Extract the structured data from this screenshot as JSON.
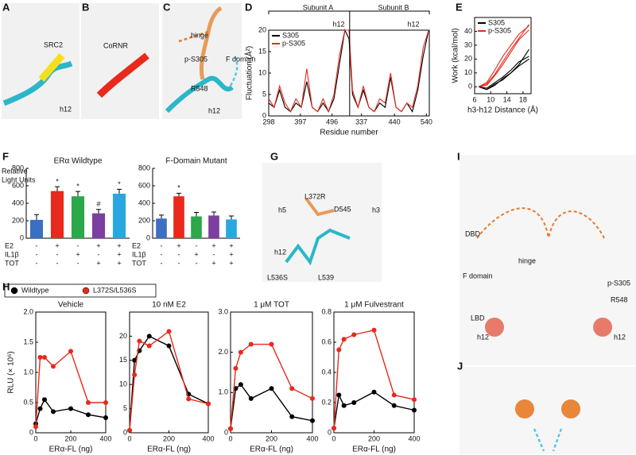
{
  "panels": [
    {
      "letter": "A",
      "labels": [
        "SRC2",
        "h12"
      ]
    },
    {
      "letter": "B",
      "labels": [
        "CoRNR"
      ]
    },
    {
      "letter": "C",
      "labels": [
        "hinge",
        "p-S305",
        "F domain",
        "R548",
        "h12"
      ]
    },
    {
      "letter": "D",
      "labels": []
    },
    {
      "letter": "E",
      "labels": []
    },
    {
      "letter": "F",
      "labels": []
    },
    {
      "letter": "G",
      "labels": [
        "L372R",
        "h5",
        "D545",
        "h3",
        "h12",
        "L536S",
        "L539"
      ]
    },
    {
      "letter": "H",
      "labels": []
    },
    {
      "letter": "I",
      "labels": [
        "DBD",
        "hinge",
        "F domain",
        "p-S305",
        "R548",
        "LBD",
        "h12",
        "h12"
      ]
    },
    {
      "letter": "J",
      "labels": []
    }
  ],
  "chart_data": [
    {
      "type": "line",
      "xlabel": "Residue number",
      "ylabel": "Fluctuation (Å²)",
      "annotations": [
        "Subunit A",
        "Subunit B",
        "h12",
        "h12"
      ],
      "x": [
        298,
        315,
        332,
        349,
        366,
        383,
        400,
        417,
        434,
        451,
        468,
        485,
        502,
        519,
        536,
        549,
        560,
        577,
        594,
        611,
        628,
        645,
        662,
        679,
        696,
        713,
        730,
        747,
        764,
        781,
        798
      ],
      "xlim": [
        298,
        800
      ],
      "xticks": [
        298,
        397,
        496,
        {
          "value": 588,
          "label": "337"
        },
        {
          "value": 691,
          "label": "440"
        },
        {
          "value": 791,
          "label": "540"
        }
      ],
      "ylim": [
        0,
        20
      ],
      "yticks": [
        0,
        5,
        10,
        15,
        20
      ],
      "legend": "top-left",
      "series": [
        {
          "name": "S305",
          "color": "#000000",
          "values": [
            3,
            2,
            6,
            2,
            1,
            3,
            2,
            8,
            2,
            1,
            3,
            1,
            4,
            12,
            20,
            18,
            5,
            2,
            6,
            2,
            1,
            3,
            2,
            9,
            2,
            1,
            3,
            1,
            6,
            14,
            20
          ]
        },
        {
          "name": "p-S305",
          "color": "#e8291c",
          "values": [
            4,
            2,
            7,
            3,
            1,
            4,
            2,
            11,
            2,
            1,
            4,
            1,
            5,
            14,
            20,
            20,
            6,
            2,
            7,
            2,
            1,
            4,
            3,
            10,
            2,
            1,
            3,
            2,
            7,
            16,
            20
          ]
        }
      ]
    },
    {
      "type": "line",
      "xlabel": "h3-h12 Distance (Å)",
      "ylabel": "Work (kcal/mol)",
      "x": [
        7,
        9,
        11,
        13,
        15,
        17,
        19.5
      ],
      "xlim": [
        6,
        20
      ],
      "xticks": [
        6,
        10,
        14,
        18
      ],
      "ylim": [
        -5,
        50
      ],
      "yticks": [
        0,
        10,
        20,
        30,
        40
      ],
      "legend": "top-left",
      "series": [
        {
          "name": "S305",
          "color": "#000000",
          "values": [
            0,
            -2,
            2,
            5,
            10,
            15,
            20
          ]
        },
        {
          "name": "S305",
          "color": "#000000",
          "values": [
            0,
            -1,
            3,
            7,
            12,
            18,
            22
          ]
        },
        {
          "name": "S305",
          "color": "#000000",
          "values": [
            0,
            -2,
            1,
            6,
            10,
            16,
            27
          ]
        },
        {
          "name": "p-S305",
          "color": "#e8291c",
          "values": [
            0,
            2,
            9,
            18,
            27,
            35,
            45
          ]
        },
        {
          "name": "p-S305",
          "color": "#e8291c",
          "values": [
            0,
            3,
            12,
            22,
            30,
            38,
            44
          ]
        },
        {
          "name": "p-S305",
          "color": "#e8291c",
          "values": [
            0,
            1,
            8,
            16,
            25,
            34,
            41
          ]
        }
      ]
    },
    {
      "type": "bar",
      "title": "ERα Wildtype",
      "ylabel": [
        "Relative",
        "Light Units"
      ],
      "values": [
        210,
        540,
        480,
        285,
        510
      ],
      "errors": [
        60,
        50,
        55,
        45,
        50
      ],
      "colors": [
        "#3a6fc1",
        "#e8291c",
        "#2aa84a",
        "#7b3fa0",
        "#29a8e0"
      ],
      "markers": [
        null,
        "*",
        "*",
        "#",
        "*"
      ],
      "ylim": [
        0,
        800
      ],
      "yticks": [
        0,
        200,
        400,
        600,
        800
      ],
      "conditions": [
        {
          "name": "E2",
          "signs": [
            "-",
            "+",
            "-",
            "+",
            "+"
          ]
        },
        {
          "name": "IL1β",
          "signs": [
            "-",
            "-",
            "+",
            "-",
            "+"
          ]
        },
        {
          "name": "TOT",
          "signs": [
            "-",
            "-",
            "-",
            "+",
            "+"
          ]
        }
      ]
    },
    {
      "type": "bar",
      "title": "F-Domain Mutant",
      "values": [
        225,
        480,
        250,
        260,
        215
      ],
      "errors": [
        40,
        35,
        45,
        40,
        40
      ],
      "colors": [
        "#3a6fc1",
        "#e8291c",
        "#2aa84a",
        "#7b3fa0",
        "#29a8e0"
      ],
      "markers": [
        null,
        "*",
        null,
        null,
        null
      ],
      "ylim": [
        0,
        800
      ],
      "yticks": [
        0,
        200,
        400,
        600,
        800
      ],
      "conditions": [
        {
          "name": "E2",
          "signs": [
            "-",
            "+",
            "-",
            "+",
            "+"
          ]
        },
        {
          "name": "IL1β",
          "signs": [
            "-",
            "-",
            "+",
            "-",
            "+"
          ]
        },
        {
          "name": "TOT",
          "signs": [
            "-",
            "-",
            "-",
            "+",
            "+"
          ]
        }
      ]
    },
    {
      "type": "line",
      "title": "Vehicle",
      "xlabel": "ERα-FL (ng)",
      "ylabel": "RLU (× 10⁶)",
      "markers": true,
      "legend": "above",
      "x": [
        0,
        25,
        50,
        100,
        200,
        300,
        400
      ],
      "xlim": [
        0,
        400
      ],
      "xticks": [
        0,
        200,
        400
      ],
      "ylim": [
        0,
        2
      ],
      "yticks": [
        0,
        0.5,
        {
          "value": 1,
          "label": "1.0"
        },
        1.5,
        {
          "value": 2,
          "label": "2.0"
        }
      ],
      "series": [
        {
          "name": "Wildtype",
          "color": "#000000",
          "values": [
            0.15,
            0.4,
            0.55,
            0.35,
            0.4,
            0.3,
            0.25
          ]
        },
        {
          "name": "L372S/L536S",
          "color": "#e8291c",
          "values": [
            0.1,
            1.25,
            1.25,
            1.1,
            1.35,
            0.5,
            0.5
          ]
        }
      ]
    },
    {
      "type": "line",
      "title": "10 nM E2",
      "xlabel": "ERα-FL (ng)",
      "markers": true,
      "x": [
        0,
        25,
        50,
        100,
        200,
        300,
        400
      ],
      "xlim": [
        0,
        400
      ],
      "xticks": [
        0,
        200,
        400
      ],
      "ylim": [
        0,
        25
      ],
      "yticks": [
        0,
        5,
        10,
        15,
        20
      ],
      "series": [
        {
          "name": "Wildtype",
          "color": "#000000",
          "values": [
            0.5,
            15,
            17,
            20,
            18,
            8,
            6
          ]
        },
        {
          "name": "L372S/L536S",
          "color": "#e8291c",
          "values": [
            0.5,
            12,
            19,
            18,
            21,
            7,
            6
          ]
        }
      ]
    },
    {
      "type": "line",
      "title": "1 μM TOT",
      "xlabel": "ERα-FL (ng)",
      "markers": true,
      "x": [
        0,
        25,
        50,
        100,
        200,
        300,
        400
      ],
      "xlim": [
        0,
        400
      ],
      "xticks": [
        0,
        200,
        400
      ],
      "ylim": [
        0,
        3
      ],
      "yticks": [
        0,
        {
          "value": 1,
          "label": "1.0"
        },
        {
          "value": 2,
          "label": "2.0"
        },
        {
          "value": 3,
          "label": "3.0"
        }
      ],
      "series": [
        {
          "name": "Wildtype",
          "color": "#000000",
          "values": [
            0.1,
            1.1,
            1.2,
            0.85,
            1.1,
            0.4,
            0.3
          ]
        },
        {
          "name": "L372S/L536S",
          "color": "#e8291c",
          "values": [
            0.1,
            1.6,
            2.0,
            2.2,
            2.2,
            1.1,
            0.85
          ]
        }
      ]
    },
    {
      "type": "line",
      "title": "1 μM Fulvestrant",
      "xlabel": "ERα-FL (ng)",
      "markers": true,
      "x": [
        0,
        25,
        50,
        100,
        200,
        300,
        400
      ],
      "xlim": [
        0,
        400
      ],
      "xticks": [
        0,
        200,
        400
      ],
      "ylim": [
        0,
        0.8
      ],
      "yticks": [
        0,
        0.2,
        0.4,
        0.6,
        0.8
      ],
      "series": [
        {
          "name": "Wildtype",
          "color": "#000000",
          "values": [
            0.03,
            0.25,
            0.18,
            0.2,
            0.27,
            0.18,
            0.15
          ]
        },
        {
          "name": "L372S/L536S",
          "color": "#e8291c",
          "values": [
            0.03,
            0.55,
            0.62,
            0.65,
            0.68,
            0.25,
            0.22
          ]
        }
      ]
    }
  ]
}
